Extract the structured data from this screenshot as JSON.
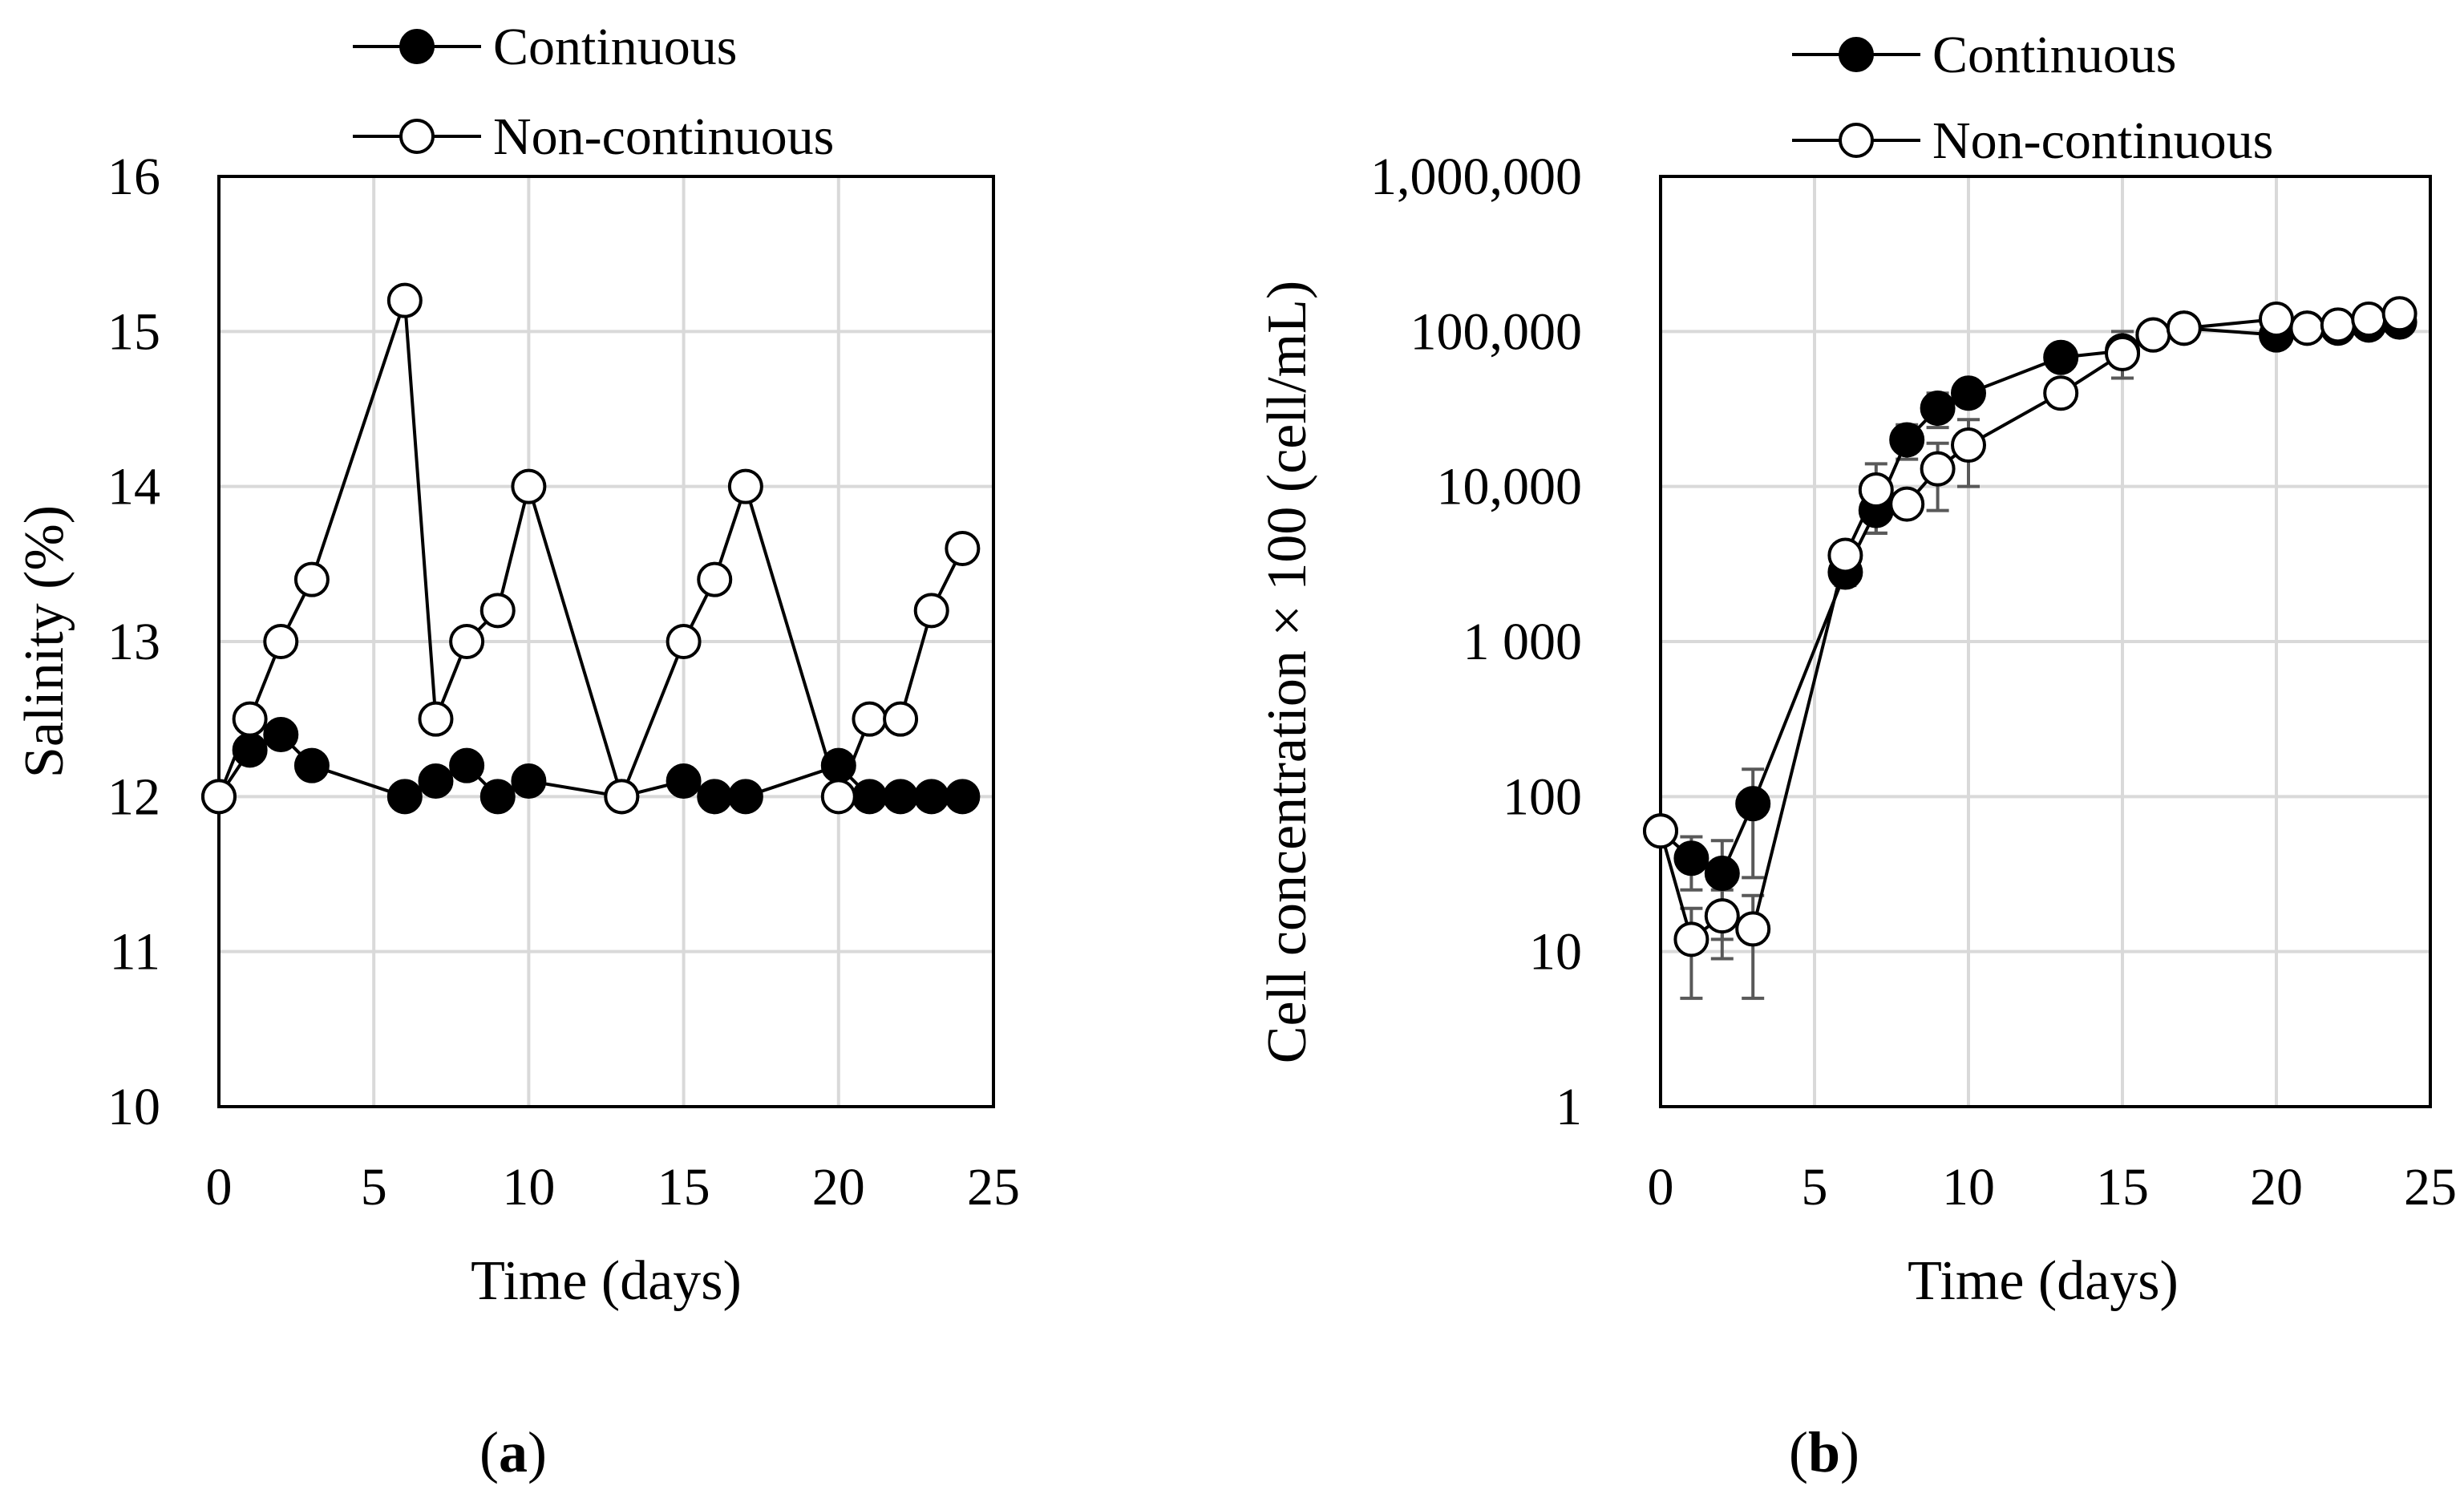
{
  "chart_data": [
    {
      "id": "a",
      "type": "line",
      "panel_label": "a",
      "title": "",
      "xlabel": "Time (days)",
      "ylabel": "Salinity (%)",
      "xlim": [
        0,
        25
      ],
      "ylim": [
        10,
        16
      ],
      "yscale": "linear",
      "x_ticks": [
        0,
        5,
        10,
        15,
        20,
        25
      ],
      "x_tick_labels": [
        "0",
        "5",
        "10",
        "15",
        "20",
        "25"
      ],
      "y_ticks": [
        10,
        11,
        12,
        13,
        14,
        15,
        16
      ],
      "y_tick_labels": [
        "10",
        "11",
        "12",
        "13",
        "14",
        "15",
        "16"
      ],
      "grid": true,
      "legend_position": "top",
      "series": [
        {
          "name": "Continuous",
          "marker": "filled-circle",
          "color": "#000000",
          "x": [
            0,
            1,
            2,
            3,
            6,
            7,
            8,
            9,
            10,
            13,
            15,
            16,
            17,
            20,
            21,
            22,
            23,
            24
          ],
          "y": [
            12.0,
            12.3,
            12.4,
            12.2,
            12.0,
            12.1,
            12.2,
            12.0,
            12.1,
            12.0,
            12.1,
            12.0,
            12.0,
            12.2,
            12.0,
            12.0,
            12.0,
            12.0
          ]
        },
        {
          "name": "Non-continuous",
          "marker": "open-circle",
          "color": "#000000",
          "x": [
            0,
            1,
            2,
            3,
            6,
            7,
            8,
            9,
            10,
            13,
            15,
            16,
            17,
            20,
            21,
            22,
            23,
            24
          ],
          "y": [
            12.0,
            12.5,
            13.0,
            13.4,
            15.2,
            12.5,
            13.0,
            13.2,
            14.0,
            12.0,
            13.0,
            13.4,
            14.0,
            12.0,
            12.5,
            12.5,
            13.2,
            13.6
          ]
        }
      ]
    },
    {
      "id": "b",
      "type": "line",
      "panel_label": "b",
      "title": "",
      "xlabel": "Time (days)",
      "ylabel": "Cell concentration × 100  (cell/mL)",
      "xlim": [
        0,
        25
      ],
      "ylim": [
        1,
        1000000
      ],
      "yscale": "log",
      "x_ticks": [
        0,
        5,
        10,
        15,
        20,
        25
      ],
      "x_tick_labels": [
        "0",
        "5",
        "10",
        "15",
        "20",
        "25"
      ],
      "y_ticks": [
        1,
        10,
        100,
        1000,
        10000,
        100000,
        1000000
      ],
      "y_tick_labels": [
        "1",
        "10",
        "100",
        "1 000",
        "10,000",
        "100,000",
        "1,000,000"
      ],
      "grid": true,
      "legend_position": "top",
      "series": [
        {
          "name": "Continuous",
          "marker": "filled-circle",
          "color": "#000000",
          "x": [
            0,
            1,
            2,
            3,
            6,
            7,
            8,
            9,
            10,
            13,
            15,
            16,
            17,
            20,
            21,
            22,
            23,
            24
          ],
          "y": [
            60,
            40,
            32,
            90,
            2800,
            7000,
            20000,
            32000,
            40000,
            68000,
            75000,
            95000,
            105000,
            95000,
            105000,
            105000,
            110000,
            115000
          ],
          "err": [
            0,
            15,
            20,
            60,
            500,
            2000,
            5000,
            8000,
            0,
            0,
            25000,
            0,
            0,
            0,
            0,
            0,
            0,
            0
          ]
        },
        {
          "name": "Non-continuous",
          "marker": "open-circle",
          "color": "#000000",
          "x": [
            0,
            1,
            2,
            3,
            6,
            7,
            8,
            9,
            10,
            13,
            15,
            16,
            17,
            20,
            21,
            22,
            23,
            24
          ],
          "y": [
            60,
            12,
            17,
            14,
            3600,
            9500,
            7700,
            13000,
            18500,
            40000,
            72000,
            95000,
            105000,
            120000,
            105000,
            110000,
            120000,
            130000
          ],
          "err": [
            0,
            7,
            8,
            9,
            0,
            4500,
            0,
            6000,
            8500,
            0,
            0,
            0,
            0,
            0,
            0,
            0,
            0,
            0
          ]
        }
      ]
    }
  ]
}
